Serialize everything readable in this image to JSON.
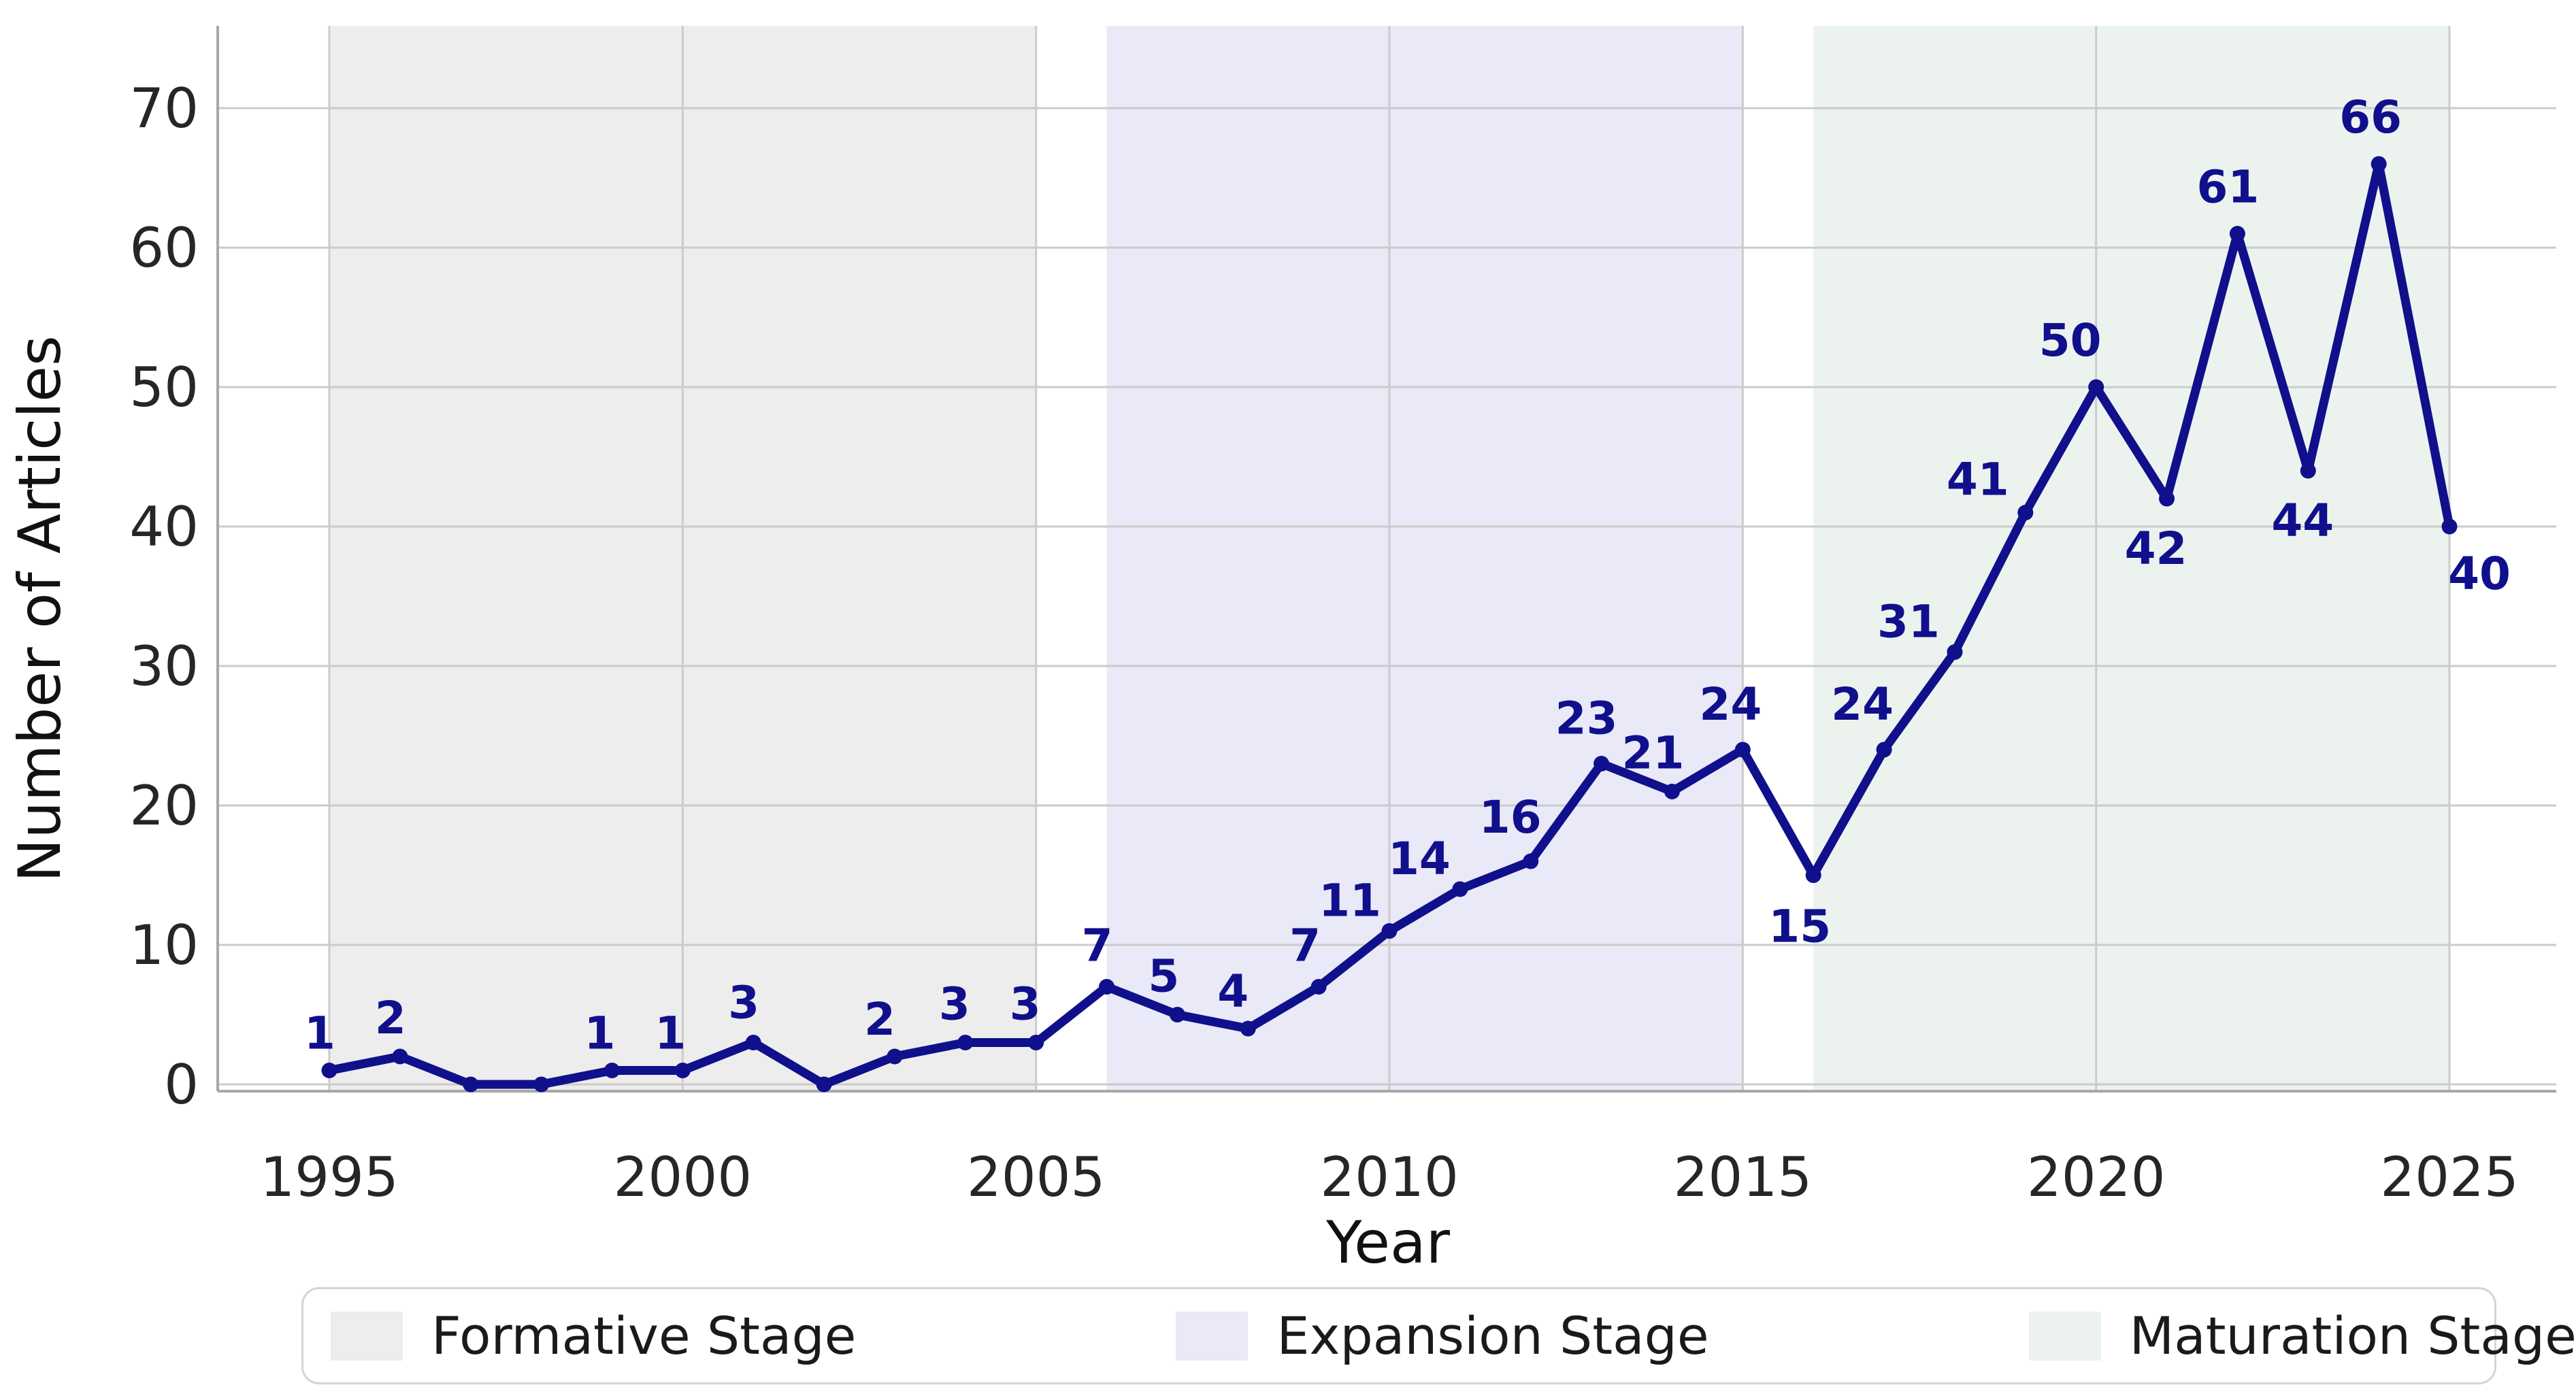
{
  "chart_data": {
    "type": "line",
    "title": "",
    "xlabel": "Year",
    "ylabel": "Number of Articles",
    "x_ticks": [
      1995,
      2000,
      2005,
      2010,
      2015,
      2020,
      2025
    ],
    "y_ticks": [
      0,
      10,
      20,
      30,
      40,
      50,
      60,
      70
    ],
    "xlim": [
      1993.4,
      2026.5
    ],
    "ylim": [
      0,
      76
    ],
    "grid": true,
    "legend_position": "bottom",
    "line_color": "#10108c",
    "grid_color": "#cbcbcb",
    "spine_color": "#a8a8a8",
    "tick_color": "#262626",
    "series": [
      {
        "name": "Number of Articles",
        "points": [
          {
            "year": 1995,
            "value": 1,
            "label": "1",
            "dx": -14,
            "dy": -32
          },
          {
            "year": 1996,
            "value": 2,
            "label": "2",
            "dx": -14,
            "dy": -34
          },
          {
            "year": 1997,
            "value": 0,
            "label": ""
          },
          {
            "year": 1998,
            "value": 0,
            "label": ""
          },
          {
            "year": 1999,
            "value": 1,
            "label": "1",
            "dx": -18,
            "dy": -32
          },
          {
            "year": 2000,
            "value": 1,
            "label": "1",
            "dx": -18,
            "dy": -32
          },
          {
            "year": 2001,
            "value": 3,
            "label": "3",
            "dx": -14,
            "dy": -36
          },
          {
            "year": 2002,
            "value": 0,
            "label": ""
          },
          {
            "year": 2003,
            "value": 2,
            "label": "2",
            "dx": -22,
            "dy": -32
          },
          {
            "year": 2004,
            "value": 3,
            "label": "3",
            "dx": -16,
            "dy": -34
          },
          {
            "year": 2005,
            "value": 3,
            "label": "3",
            "dx": -16,
            "dy": -34
          },
          {
            "year": 2006,
            "value": 7,
            "label": "7",
            "dx": -14,
            "dy": -38
          },
          {
            "year": 2007,
            "value": 5,
            "label": "5",
            "dx": -20,
            "dy": -34
          },
          {
            "year": 2008,
            "value": 4,
            "label": "4",
            "dx": -22,
            "dy": -32
          },
          {
            "year": 2009,
            "value": 7,
            "label": "7",
            "dx": -20,
            "dy": -38
          },
          {
            "year": 2010,
            "value": 11,
            "label": "11",
            "dx": -58,
            "dy": -22
          },
          {
            "year": 2011,
            "value": 14,
            "label": "14",
            "dx": -60,
            "dy": -22
          },
          {
            "year": 2012,
            "value": 16,
            "label": "16",
            "dx": -30,
            "dy": -42
          },
          {
            "year": 2013,
            "value": 23,
            "label": "23",
            "dx": -22,
            "dy": -44
          },
          {
            "year": 2014,
            "value": 21,
            "label": "21",
            "dx": -28,
            "dy": -34
          },
          {
            "year": 2015,
            "value": 24,
            "label": "24",
            "dx": -18,
            "dy": -44
          },
          {
            "year": 2016,
            "value": 15,
            "label": "15",
            "dx": -20,
            "dy": 98
          },
          {
            "year": 2017,
            "value": 24,
            "label": "24",
            "dx": -32,
            "dy": -44
          },
          {
            "year": 2018,
            "value": 31,
            "label": "31",
            "dx": -68,
            "dy": -22
          },
          {
            "year": 2019,
            "value": 41,
            "label": "41",
            "dx": -70,
            "dy": -26
          },
          {
            "year": 2020,
            "value": 50,
            "label": "50",
            "dx": -38,
            "dy": -46
          },
          {
            "year": 2021,
            "value": 42,
            "label": "42",
            "dx": -16,
            "dy": 96
          },
          {
            "year": 2022,
            "value": 61,
            "label": "61",
            "dx": -14,
            "dy": -46
          },
          {
            "year": 2023,
            "value": 44,
            "label": "44",
            "dx": -8,
            "dy": 96
          },
          {
            "year": 2024,
            "value": 66,
            "label": "66",
            "dx": -12,
            "dy": -46
          },
          {
            "year": 2025,
            "value": 40,
            "label": "40",
            "dx": 44,
            "dy": 92
          }
        ]
      }
    ],
    "stages": [
      {
        "label": "Formative Stage",
        "start": 1995,
        "end": 2005,
        "color": "#ededed"
      },
      {
        "label": "Expansion Stage",
        "start": 2006,
        "end": 2015,
        "color": "#e9e9f8"
      },
      {
        "label": "Maturation Stage",
        "start": 2016,
        "end": 2025,
        "color": "#ecf3ee"
      }
    ]
  }
}
